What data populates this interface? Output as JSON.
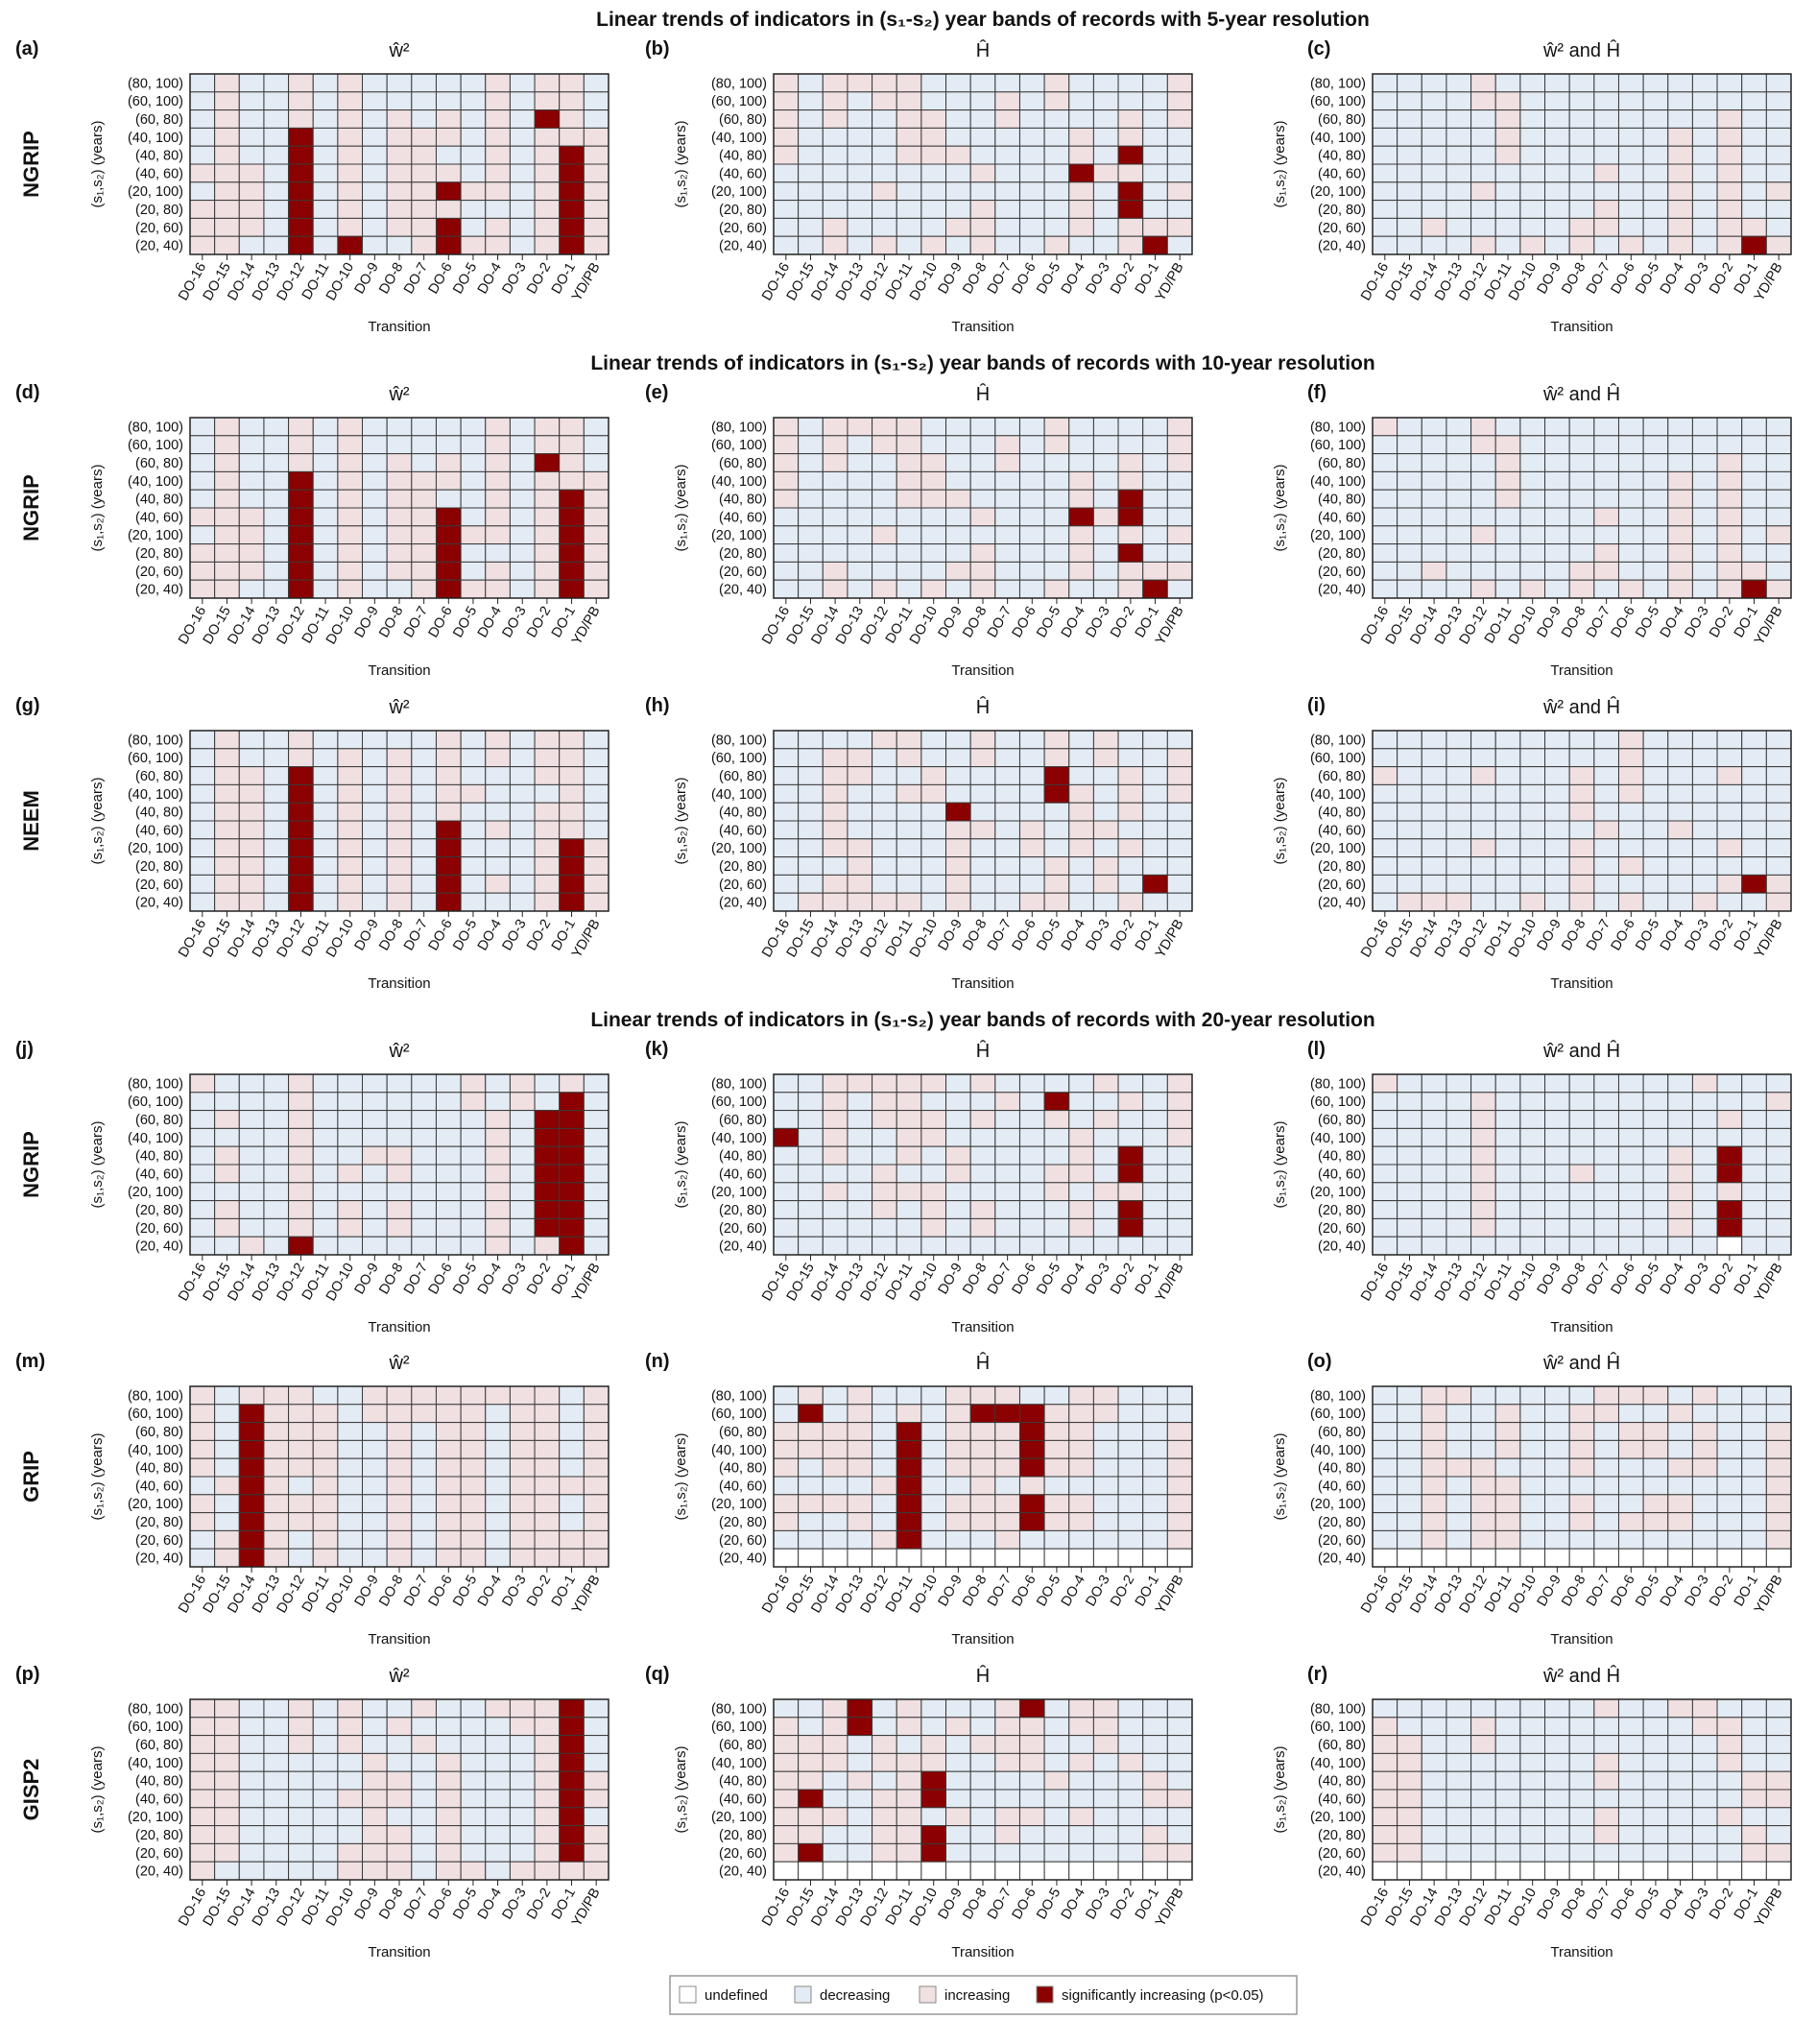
{
  "chart_data": {
    "type": "heatmap",
    "section_titles": [
      "Linear trends of indicators in (s₁-s₂) year bands of records with 5-year resolution",
      "Linear trends of indicators in (s₁-s₂) year bands of records with 10-year resolution",
      "Linear trends of indicators in (s₁-s₂) year bands of records with 20-year resolution"
    ],
    "columns": [
      "DO-16",
      "DO-15",
      "DO-14",
      "DO-13",
      "DO-12",
      "DO-11",
      "DO-10",
      "DO-9",
      "DO-8",
      "DO-7",
      "DO-6",
      "DO-5",
      "DO-4",
      "DO-3",
      "DO-2",
      "DO-1",
      "YD/PB"
    ],
    "rows": [
      "(80, 100)",
      "(60, 100)",
      "(60, 80)",
      "(40, 100)",
      "(40, 80)",
      "(40, 60)",
      "(20, 100)",
      "(20, 80)",
      "(20, 60)",
      "(20, 40)"
    ],
    "ylabel": "(s₁,s₂) (years)",
    "xlabel": "Transition",
    "cell_codes": {
      "u": "undefined",
      "d": "decreasing",
      "i": "increasing",
      "s": "significantly increasing (p<0.05)"
    },
    "colors": {
      "u": "#ffffff",
      "d": "#e3ebf4",
      "i": "#f0e0e1",
      "s": "#8b0000",
      "grid": "#3a3a3a"
    },
    "legend": [
      {
        "code": "u",
        "label": "undefined"
      },
      {
        "code": "d",
        "label": "decreasing"
      },
      {
        "code": "i",
        "label": "increasing"
      },
      {
        "code": "s",
        "label": "significantly increasing (p<0.05)"
      }
    ],
    "panel_rows": [
      {
        "record": "NGRIP",
        "panels": [
          {
            "label": "(a)",
            "title": "ŵ²",
            "grid": [
              "diddi diddd ddidi id",
              "diddi diddd ddidi id",
              "diddi didid idids id",
              "didds didii ididi ii",
              "didds didii ddidi si",
              "iiids didii ididi si",
              "diids didii siidi si",
              "iiids didii idddi si",
              "iiids didii sdidi si",
              "iidds dsddi siidi si"
            ]
          },
          {
            "label": "(b)",
            "title": "Ĥ",
            "grid": [
              "idiii idddd diddd di",
              "ididi idddi diddd di",
              "ididd iiddi ddddi di",
              "idddd iiddd ddidi dd",
              "idddd iiidd ddids dd",
              "ddddd dddid ddsii dd",
              "ddddi ddddd ddids di",
              "ddddd dddid ddids dd",
              "ddidd ddiid ddidi ii",
              "ddidi didid diddi sd"
            ]
          },
          {
            "label": "(c)",
            "title": "ŵ² and Ĥ",
            "grid": [
              "ddddi ddddd ddddd dd",
              "ddddi idddd ddddd dd",
              "ddddd idddd ddddi dd",
              "ddddd idddd ddidi dd",
              "ddddd idddd ddidi dd",
              "ddddd ddddi ddidi dd",
              "ddddi ddddd ddidi di",
              "ddddd ddddi ddidi dd",
              "ddidd dddii ddidi id",
              "ddddi didid ididi si"
            ]
          }
        ]
      },
      {
        "record": "NGRIP",
        "panels": [
          {
            "label": "(d)",
            "title": "ŵ²",
            "grid": [
              "diddi diddd ddidi id",
              "diddi diddd ddidi id",
              "diddi didid idids id",
              "didds didii ididi ii",
              "didds didii ddidi si",
              "iiids didii sdidi si",
              "diids didii siidi si",
              "iiids didii sdddi si",
              "iiids didii sdidi si",
              "iidds diddi siidi si"
            ]
          },
          {
            "label": "(e)",
            "title": "Ĥ",
            "grid": [
              "idiii idddd diddd di",
              "ididi idddi diddd di",
              "ididd iiddi ddddi di",
              "idddd iiddd ddidi dd",
              "idddd iiidd ddids dd",
              "ddddd dddid ddsis dd",
              "ddddi ddddd ddidi di",
              "ddddd dddid ddids dd",
              "ddidd ddiid ddidi ii",
              "ddidi didid diddi sd"
            ]
          },
          {
            "label": "(f)",
            "title": "ŵ² and Ĥ",
            "grid": [
              "idddi ddddd ddddd dd",
              "ddddi idddd ddddd dd",
              "ddddd idddd ddddi dd",
              "ddddd idddd ddidi dd",
              "ddddd idddd ddidi dd",
              "ddddd ddddi ddidi dd",
              "ddddi ddddd ddidi di",
              "ddddd ddddi ddidi dd",
              "ddidd dddii ddidi id",
              "ddddi didid ididi si"
            ]
          }
        ]
      },
      {
        "record": "NEEM",
        "panels": [
          {
            "label": "(g)",
            "title": "ŵ²",
            "grid": [
              "diddi ddddd ididi id",
              "diddi didid ididi id",
              "diids didid idddi id",
              "diids didid iiddd id",
              "diids didid idddi id",
              "diids didid sdidi id",
              "diids didid sdddi si",
              "diids didid sdddi si",
              "diids didid sdidi si",
              "diids didid sdddi si"
            ]
          },
          {
            "label": "(h)",
            "title": "Ĥ",
            "grid": [
              "ddddi iddid didid dd",
              "ddiid iddid didid di",
              "ddiid diddd dsddi di",
              "ddidd iiddd dsidi di",
              "ddidd ddsdd ddidi dd",
              "ddidd ddiid idiid dd",
              "ddiid ddidd ididi dd",
              "dddid ddidd didid dd",
              "ddiid ddidd didid sd",
              "diiii ididd iiddi dd"
            ]
          },
          {
            "label": "(i)",
            "title": "ŵ² and Ĥ",
            "grid": [
              "ddddd ddddd idddd dd",
              "ddddd ddddd idddd dd",
              "idddi dddid idddi dd",
              "ddddd dddid idddd dd",
              "ddddd dddid ddddd dd",
              "ddddd ddddi ddidd dd",
              "ddddi dddid ddddi dd",
              "ddddd dddid idddd dd",
              "ddddd dddid ddddi si",
              "diiid didid iddid di"
            ]
          }
        ]
      },
      {
        "record": "NGRIP",
        "panels": [
          {
            "label": "(j)",
            "title": "ŵ²",
            "grid": [
              "idddi ddddd didid id",
              "ddddi ddddd didid sd",
              "diddi ddddd ddids sd",
              "ddddi ddddd ddids sd",
              "diddi ddiid ddids sd",
              "diddi didid ddids sd",
              "ddddi ddddd ddids sd",
              "diddi didid ddids sd",
              "diddi didid ddids sd",
              "ddids ddddd ddidi sd"
            ]
          },
          {
            "label": "(k)",
            "title": "Ĥ",
            "grid": [
              "ddiii iidid dddid di",
              "ddidi idddi dsddi di",
              "ddidi iidid didid di",
              "sdidd iiddd ddidd di",
              "ddidd ididd ddids dd",
              "ddddi ddidd diids dd",
              "ddidi iiddd didii dd",
              "ddddi didid ddids dd",
              "ddddd didid ddids dd",
              "ddddd ddddd ddddd dd"
            ]
          },
          {
            "label": "(l)",
            "title": "ŵ² and Ĥ",
            "grid": [
              "idddd ddddd dddid dd",
              "ddddi ddddd ddddd di",
              "ddddi ddddd ddddi dd",
              "ddddi ddddd ddddd dd",
              "ddddi ddddd ddids dd",
              "ddddi dddid ddids dd",
              "ddddi ddddd ddidi dd",
              "ddddi ddddd ddids dd",
              "ddddi ddddd ddids dd",
              "ddddd ddddd ddddu dd"
            ]
          }
        ]
      },
      {
        "record": "GRIP",
        "panels": [
          {
            "label": "(m)",
            "title": "ŵ²",
            "grid": [
              "idiii ddiii iiiii di",
              "idsii idiii iidii di",
              "idsii iddid iidii di",
              "idsii iddid iidii di",
              "idsii iddid iidii di",
              "disid iddid iidii ii",
              "idsii iddid iidii di",
              "idsii iddid iidii di",
              "disid iddid iidii ii",
              "disid iddid iidii ii"
            ]
          },
          {
            "label": "(n)",
            "title": "Ĥ",
            "grid": [
              "didid ddiii ddiid dd",
              "dsdid idiss siiid dd",
              "iiiid sdiii siidd di",
              "iiiid sdiii siidd di",
              "idiid sdiii siidd di",
              "ddddi sddid idddd di",
              "iiiid sdiii siidd di",
              "iddid sdiii siidd di",
              "ddddi sdddi ddddd di",
              "uuuuu uuuuu uuuuu uu"
            ]
          },
          {
            "label": "(o)",
            "title": "ŵ² and Ĥ",
            "grid": [
              "ddiid ddddi iidid dd",
              "ddidd iddii ddidd dd",
              "ddidd iddid iidid di",
              "ddidd iddid iidid di",
              "ddiii dddid ddiid di",
              "ddidi idddd ddddd di",
              "ddidi iddid diidd di",
              "ddidi iddid iiidd di",
              "ddidi idddd ddddd di",
              "uuuuu uuuuu uuuuu uu"
            ]
          }
        ]
      },
      {
        "record": "GISP2",
        "panels": [
          {
            "label": "(p)",
            "title": "ŵ²",
            "grid": [
              "iiddi diddi ddiii sd",
              "iiddi didid dddii sd",
              "iiddi diddi ddddi sd",
              "iiddd ddidd idddi sd",
              "iiddd ddiid idddi si",
              "iiddd diiid idddi si",
              "iiddd ddidd idddi sd",
              "iiddd ddiid idddi si",
              "iiddd diiid idddi si",
              "idddd diiid iidii ii"
            ]
          },
          {
            "label": "(q)",
            "title": "Ĥ",
            "grid": [
              "ddisd idddi sdiid dd",
              "idisd ididi idiid dd",
              "iiidi didii iddid dd",
              "iiidi iiddi ididi dd",
              "iidid isddd diddd id",
              "isddi isddd ddddd ii",
              "iiidi ididi ididd dd",
              "iiddi isddi ddddd id",
              "isddi isddd ddddd ii",
              "uuuuu uuuuu uuuuu uu"
            ]
          },
          {
            "label": "(r)",
            "title": "ŵ² and Ĥ",
            "grid": [
              "ddddd ddddi ddiid dd",
              "idddi ddddd dddii dd",
              "iiddi ddddd ddddi dd",
              "iiddd ddddi ddddi dd",
              "iiddd ddddi ddddd ii",
              "iiddd ddddd ddddd ii",
              "iiddd ddddi ddddi dd",
              "iiddd ddddi ddddd id",
              "iiddd ddddd ddddd ii",
              "uuuuu uuuuu uuuuu uu"
            ]
          }
        ]
      }
    ]
  }
}
